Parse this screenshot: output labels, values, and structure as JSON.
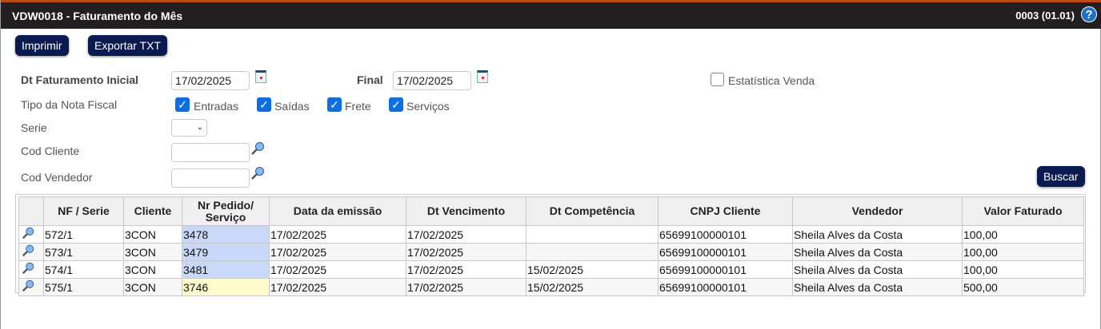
{
  "window": {
    "title": "VDW0018 - Faturamento do Mês",
    "version": "0003 (01.01)",
    "help_icon": "question-icon"
  },
  "toolbar": {
    "print_label": "Imprimir",
    "export_label": "Exportar TXT",
    "search_label": "Buscar"
  },
  "form": {
    "dt_inicial_label": "Dt Faturamento Inicial",
    "dt_inicial_value": "17/02/2025",
    "dt_final_label": "Final",
    "dt_final_value": "17/02/2025",
    "estatistica_label": "Estatística Venda",
    "estatistica_checked": false,
    "tipo_label": "Tipo da Nota Fiscal",
    "tipos": [
      {
        "label": "Entradas",
        "checked": true
      },
      {
        "label": "Saídas",
        "checked": true
      },
      {
        "label": "Frete",
        "checked": true
      },
      {
        "label": "Serviços",
        "checked": true
      }
    ],
    "serie_label": "Serie",
    "serie_value": "",
    "cliente_label": "Cod Cliente",
    "cliente_value": "",
    "vendedor_label": "Cod Vendedor",
    "vendedor_value": ""
  },
  "table": {
    "headers": [
      "",
      "NF / Serie",
      "Cliente",
      "Nr Pedido/ Serviço",
      "Data da emissão",
      "Dt Vencimento",
      "Dt Competência",
      "CNPJ Cliente",
      "Vendedor",
      "Valor Faturado"
    ],
    "rows": [
      [
        "572/1",
        "3CON",
        "3478",
        "17/02/2025",
        "17/02/2025",
        "",
        "65699100000101",
        "Sheila Alves da Costa",
        "100,00"
      ],
      [
        "573/1",
        "3CON",
        "3479",
        "17/02/2025",
        "17/02/2025",
        "",
        "65699100000101",
        "Sheila Alves da Costa",
        "100,00"
      ],
      [
        "574/1",
        "3CON",
        "3481",
        "17/02/2025",
        "17/02/2025",
        "15/02/2025",
        "65699100000101",
        "Sheila Alves da Costa",
        "100,00"
      ],
      [
        "575/1",
        "3CON",
        "3746",
        "17/02/2025",
        "17/02/2025",
        "15/02/2025",
        "65699100000101",
        "Sheila Alves da Costa",
        "500,00"
      ]
    ],
    "highlight_colors": {
      "pedido": "#c9d8f8",
      "servico": "#fffbcc"
    }
  }
}
